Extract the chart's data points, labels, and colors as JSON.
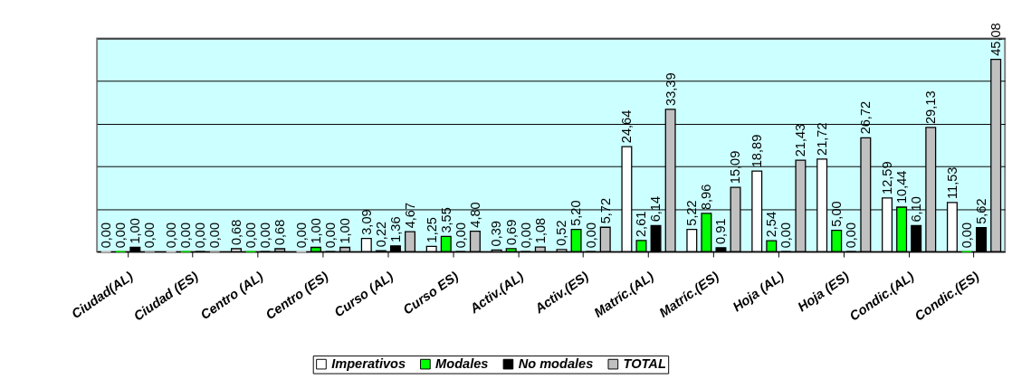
{
  "chart_data": {
    "type": "bar",
    "categories": [
      "Ciudad(AL)",
      "Ciudad (ES)",
      "Centro (AL)",
      "Centro (ES)",
      "Curso (AL)",
      "Curso ES)",
      "Activ.(AL)",
      "Activ.(ES)",
      "Matríc.(AL)",
      "Matríc.(ES)",
      "Hoja (AL)",
      "Hoja (ES)",
      "Condic.(AL)",
      "Condic.(ES)"
    ],
    "series": [
      {
        "name": "Imperativos",
        "color": "#ffffff",
        "values": [
          0.0,
          0.0,
          0.68,
          0.0,
          3.09,
          1.25,
          0.39,
          0.52,
          24.64,
          5.22,
          18.89,
          21.72,
          12.59,
          11.53
        ],
        "value_labels": [
          "0,00",
          "0,00",
          "0,68",
          "0,00",
          "3,09",
          "1,25",
          "0,39",
          "0,52",
          "24,64",
          "5,22",
          "18,89",
          "21,72",
          "12,59",
          "11,53"
        ]
      },
      {
        "name": "Modales",
        "color": "#00ff00",
        "values": [
          0.0,
          0.0,
          0.0,
          1.0,
          0.22,
          3.55,
          0.69,
          5.2,
          2.61,
          8.96,
          2.54,
          5.0,
          10.44,
          0.0
        ],
        "value_labels": [
          "0,00",
          "0,00",
          "0,00",
          "1,00",
          "0,22",
          "3,55",
          "0,69",
          "5,20",
          "2,61",
          "8,96",
          "2,54",
          "5,00",
          "10,44",
          "0,00"
        ]
      },
      {
        "name": "No modales",
        "color": "#000000",
        "values": [
          1.0,
          0.0,
          0.0,
          0.0,
          1.36,
          0.0,
          0.0,
          0.0,
          6.14,
          0.91,
          0.0,
          0.0,
          6.1,
          5.62
        ],
        "value_labels": [
          "1,00",
          "0,00",
          "0,00",
          "0,00",
          "1,36",
          "0,00",
          "0,00",
          "0,00",
          "6,14",
          "0,91",
          "0,00",
          "0,00",
          "6,10",
          "5,62"
        ]
      },
      {
        "name": "TOTAL",
        "color": "#c0c0c0",
        "values": [
          0.0,
          0.0,
          0.68,
          1.0,
          4.67,
          4.8,
          1.08,
          5.72,
          33.39,
          15.09,
          21.43,
          26.72,
          29.13,
          45.08
        ],
        "value_labels": [
          "0,00",
          "0,00",
          "0,68",
          "1,00",
          "4,67",
          "4,80",
          "1,08",
          "5,72",
          "33,39",
          "15,09",
          "21,43",
          "26,72",
          "29,13",
          "45,08"
        ]
      }
    ],
    "tick_labels": "x",
    "grid": "y",
    "legend": "bottom"
  }
}
